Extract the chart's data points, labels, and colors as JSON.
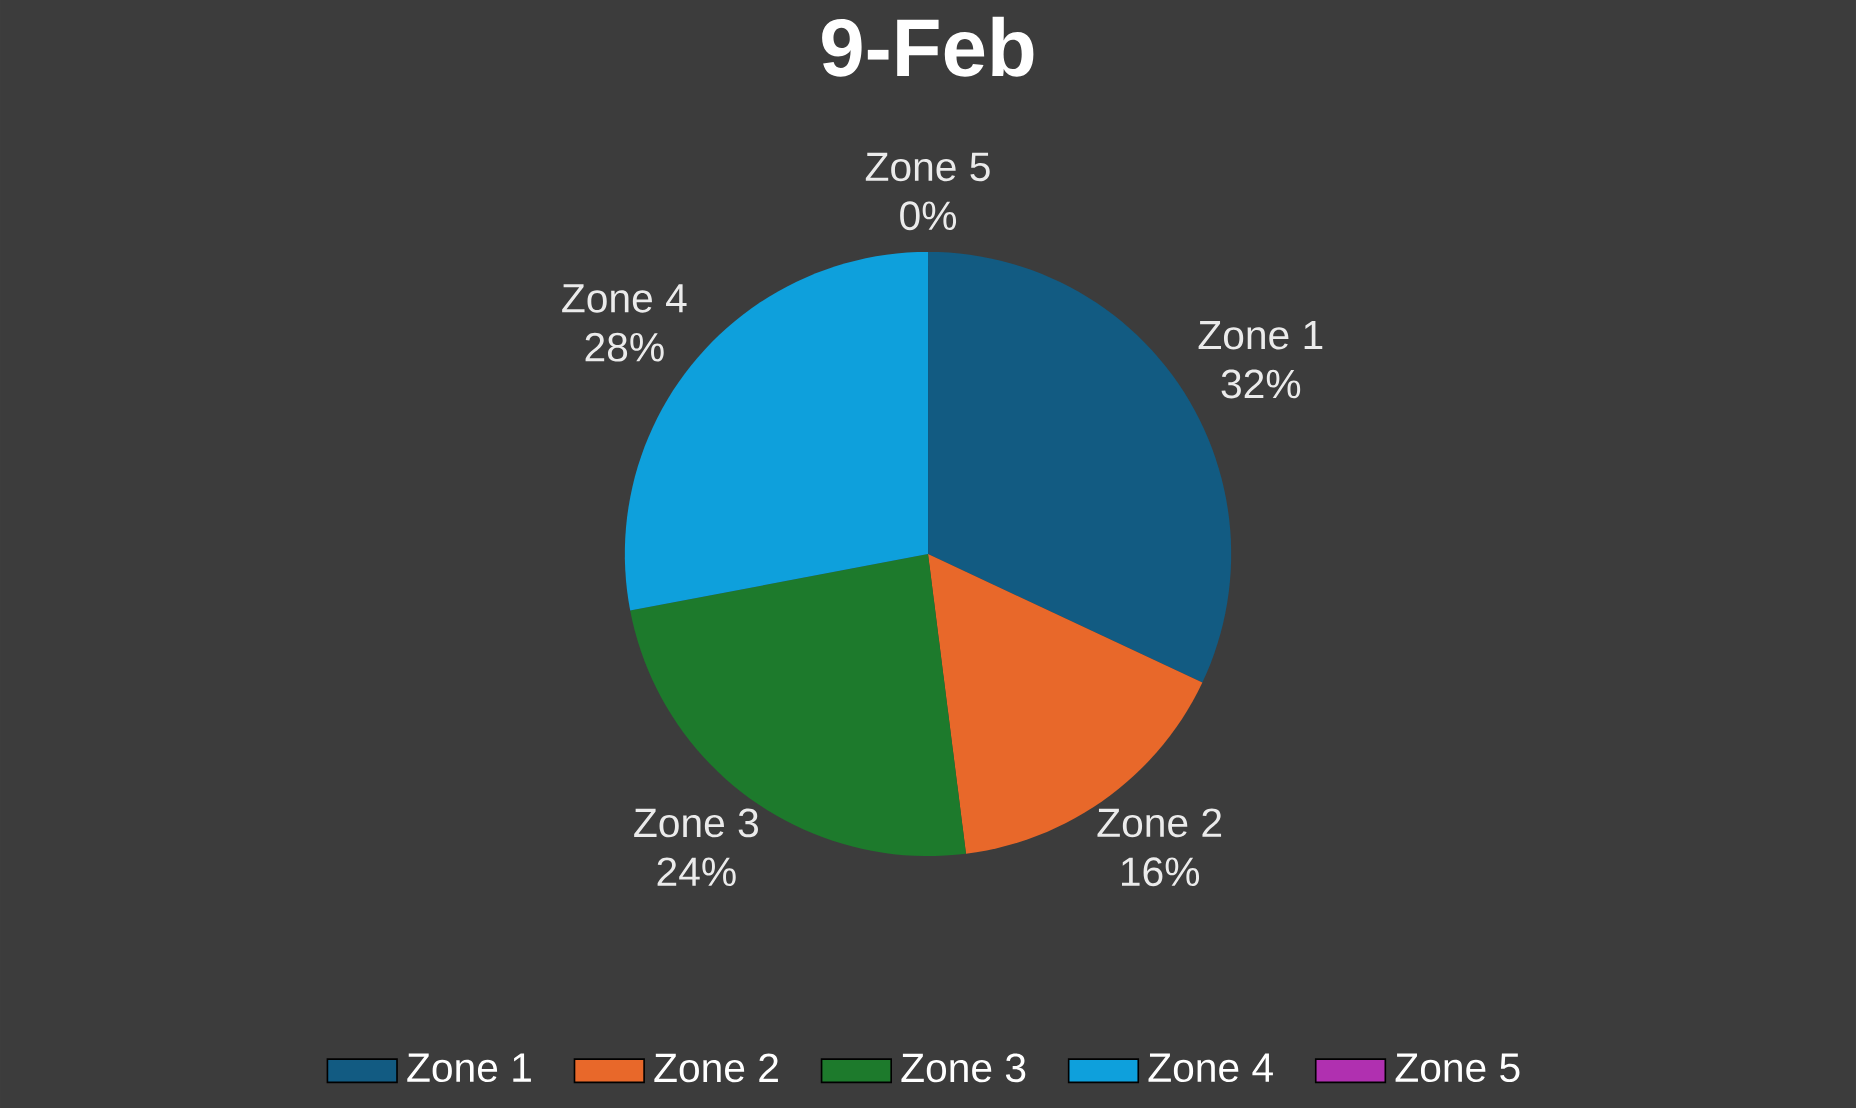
{
  "chart_data": {
    "type": "pie",
    "title": "9-Feb",
    "categories": [
      "Zone 1",
      "Zone 2",
      "Zone 3",
      "Zone 4",
      "Zone 5"
    ],
    "values": [
      32,
      16,
      24,
      28,
      0
    ],
    "value_labels": [
      "32%",
      "16%",
      "24%",
      "28%",
      "0%"
    ],
    "colors": [
      "#125b82",
      "#e8682a",
      "#1d7a2c",
      "#0ea0dc",
      "#b030b0"
    ],
    "legend": "bottom"
  }
}
